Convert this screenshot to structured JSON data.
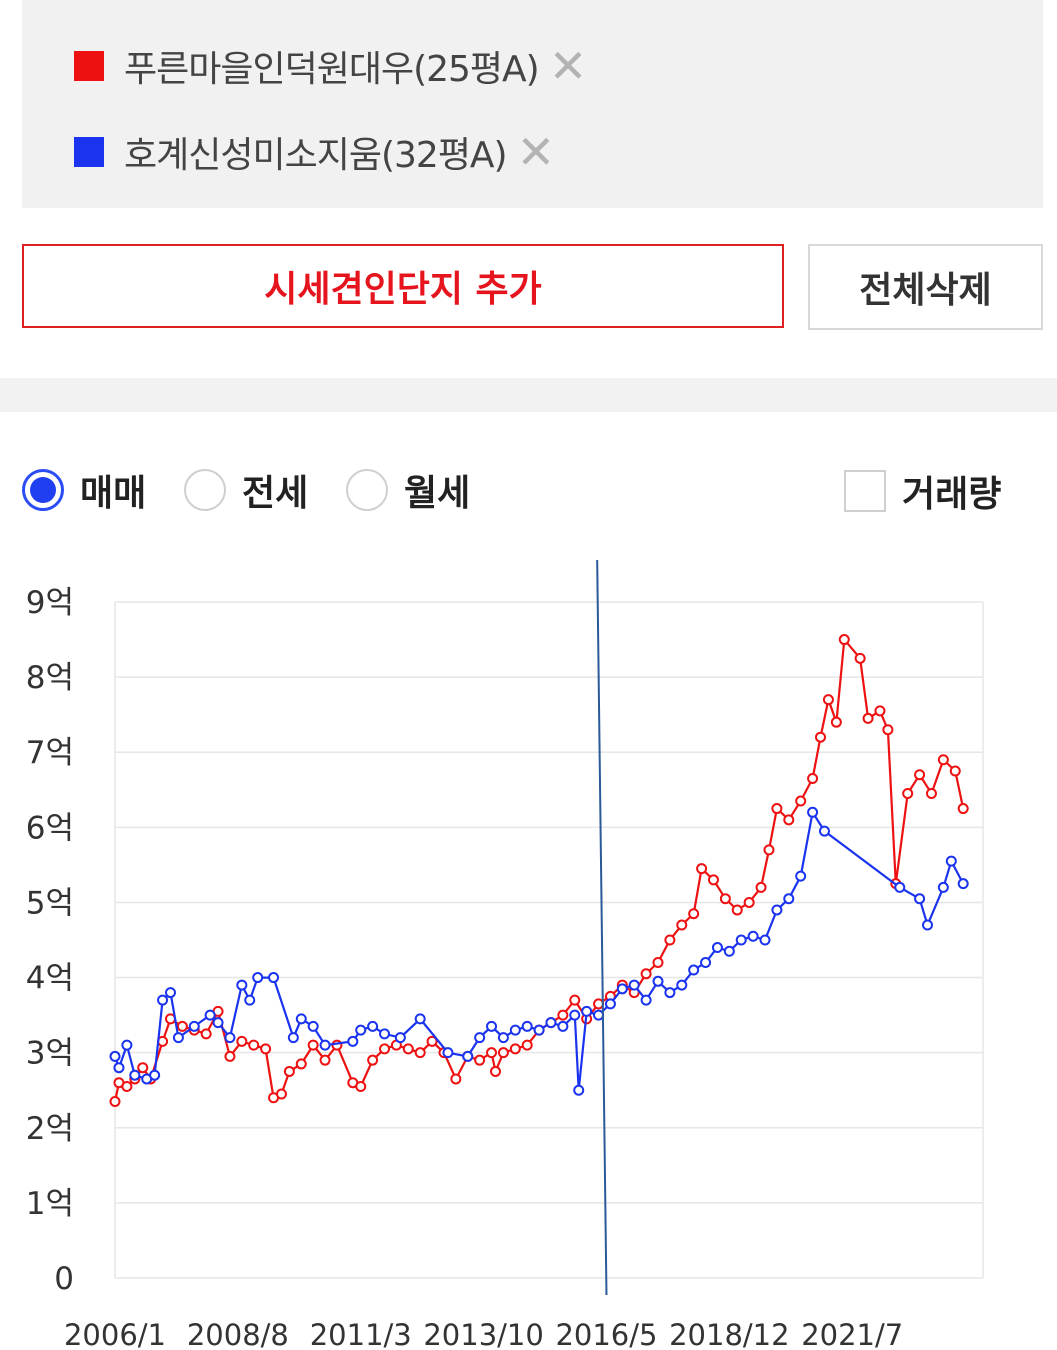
{
  "legend": {
    "items": [
      {
        "label": "푸른마을인덕원대우(25평A)",
        "color": "#ee1111",
        "remove": "✕"
      },
      {
        "label": "호계신성미소지움(32평A)",
        "color": "#1a33ee",
        "remove": "✕"
      }
    ]
  },
  "buttons": {
    "add_label": "시세견인단지 추가",
    "delete_all_label": "전체삭제"
  },
  "tabs": [
    {
      "label": "매매",
      "selected": true
    },
    {
      "label": "전세",
      "selected": false
    },
    {
      "label": "월세",
      "selected": false
    }
  ],
  "volume_toggle": {
    "label": "거래량",
    "checked": false
  },
  "chart_data": {
    "type": "line",
    "title": "",
    "xlabel": "",
    "ylabel": "",
    "y_tick_labels": [
      "0",
      "1억",
      "2억",
      "3억",
      "4억",
      "5억",
      "6억",
      "7억",
      "8억",
      "9억"
    ],
    "ylim": [
      0,
      9
    ],
    "y_unit": "억",
    "x_tick_labels": [
      "2006/1",
      "2008/8",
      "2011/3",
      "2013/10",
      "2016/5",
      "2018/12",
      "2021/7"
    ],
    "xlim": [
      "2006-01",
      "2024-04"
    ],
    "grid": true,
    "legend": "top",
    "crosshair_date": "2016-05",
    "series": [
      {
        "name": "푸른마을인덕원대우(25평A)",
        "color": "#ee1111",
        "points": [
          [
            "2006-01",
            2.35
          ],
          [
            "2006-02",
            2.6
          ],
          [
            "2006-04",
            2.55
          ],
          [
            "2006-06",
            2.65
          ],
          [
            "2006-08",
            2.8
          ],
          [
            "2006-10",
            2.65
          ],
          [
            "2007-01",
            3.15
          ],
          [
            "2007-03",
            3.45
          ],
          [
            "2007-06",
            3.35
          ],
          [
            "2007-09",
            3.3
          ],
          [
            "2007-12",
            3.25
          ],
          [
            "2008-03",
            3.55
          ],
          [
            "2008-06",
            2.95
          ],
          [
            "2008-09",
            3.15
          ],
          [
            "2008-12",
            3.1
          ],
          [
            "2009-03",
            3.05
          ],
          [
            "2009-05",
            2.4
          ],
          [
            "2009-07",
            2.45
          ],
          [
            "2009-09",
            2.75
          ],
          [
            "2009-12",
            2.85
          ],
          [
            "2010-03",
            3.1
          ],
          [
            "2010-06",
            2.9
          ],
          [
            "2010-09",
            3.1
          ],
          [
            "2011-01",
            2.6
          ],
          [
            "2011-03",
            2.55
          ],
          [
            "2011-06",
            2.9
          ],
          [
            "2011-09",
            3.05
          ],
          [
            "2011-12",
            3.1
          ],
          [
            "2012-03",
            3.05
          ],
          [
            "2012-06",
            3.0
          ],
          [
            "2012-09",
            3.15
          ],
          [
            "2012-12",
            3.0
          ],
          [
            "2013-03",
            2.65
          ],
          [
            "2013-06",
            2.95
          ],
          [
            "2013-09",
            2.9
          ],
          [
            "2013-12",
            3.0
          ],
          [
            "2014-01",
            2.75
          ],
          [
            "2014-03",
            3.0
          ],
          [
            "2014-06",
            3.05
          ],
          [
            "2014-09",
            3.1
          ],
          [
            "2014-12",
            3.3
          ],
          [
            "2015-03",
            3.4
          ],
          [
            "2015-06",
            3.5
          ],
          [
            "2015-09",
            3.7
          ],
          [
            "2015-12",
            3.45
          ],
          [
            "2016-03",
            3.65
          ],
          [
            "2016-06",
            3.75
          ],
          [
            "2016-09",
            3.9
          ],
          [
            "2016-12",
            3.8
          ],
          [
            "2017-03",
            4.05
          ],
          [
            "2017-06",
            4.2
          ],
          [
            "2017-09",
            4.5
          ],
          [
            "2017-12",
            4.7
          ],
          [
            "2018-03",
            4.85
          ],
          [
            "2018-05",
            5.45
          ],
          [
            "2018-08",
            5.3
          ],
          [
            "2018-11",
            5.05
          ],
          [
            "2019-02",
            4.9
          ],
          [
            "2019-05",
            5.0
          ],
          [
            "2019-08",
            5.2
          ],
          [
            "2019-10",
            5.7
          ],
          [
            "2019-12",
            6.25
          ],
          [
            "2020-03",
            6.1
          ],
          [
            "2020-06",
            6.35
          ],
          [
            "2020-09",
            6.65
          ],
          [
            "2020-11",
            7.2
          ],
          [
            "2021-01",
            7.7
          ],
          [
            "2021-03",
            7.4
          ],
          [
            "2021-05",
            8.5
          ],
          [
            "2021-09",
            8.25
          ],
          [
            "2021-11",
            7.45
          ],
          [
            "2022-02",
            7.55
          ],
          [
            "2022-04",
            7.3
          ],
          [
            "2022-06",
            5.25
          ],
          [
            "2022-09",
            6.45
          ],
          [
            "2022-12",
            6.7
          ],
          [
            "2023-03",
            6.45
          ],
          [
            "2023-06",
            6.9
          ],
          [
            "2023-09",
            6.75
          ],
          [
            "2023-11",
            6.25
          ]
        ]
      },
      {
        "name": "호계신성미소지움(32평A)",
        "color": "#1a33ee",
        "points": [
          [
            "2006-01",
            2.95
          ],
          [
            "2006-02",
            2.8
          ],
          [
            "2006-04",
            3.1
          ],
          [
            "2006-06",
            2.7
          ],
          [
            "2006-09",
            2.65
          ],
          [
            "2006-11",
            2.7
          ],
          [
            "2007-01",
            3.7
          ],
          [
            "2007-03",
            3.8
          ],
          [
            "2007-05",
            3.2
          ],
          [
            "2007-09",
            3.35
          ],
          [
            "2008-01",
            3.5
          ],
          [
            "2008-03",
            3.4
          ],
          [
            "2008-06",
            3.2
          ],
          [
            "2008-09",
            3.9
          ],
          [
            "2008-11",
            3.7
          ],
          [
            "2009-01",
            4.0
          ],
          [
            "2009-05",
            4.0
          ],
          [
            "2009-10",
            3.2
          ],
          [
            "2009-12",
            3.45
          ],
          [
            "2010-03",
            3.35
          ],
          [
            "2010-06",
            3.1
          ],
          [
            "2011-01",
            3.15
          ],
          [
            "2011-03",
            3.3
          ],
          [
            "2011-06",
            3.35
          ],
          [
            "2011-09",
            3.25
          ],
          [
            "2012-01",
            3.2
          ],
          [
            "2012-06",
            3.45
          ],
          [
            "2013-01",
            3.0
          ],
          [
            "2013-06",
            2.95
          ],
          [
            "2013-09",
            3.2
          ],
          [
            "2013-12",
            3.35
          ],
          [
            "2014-03",
            3.2
          ],
          [
            "2014-06",
            3.3
          ],
          [
            "2014-09",
            3.35
          ],
          [
            "2014-12",
            3.3
          ],
          [
            "2015-03",
            3.4
          ],
          [
            "2015-06",
            3.35
          ],
          [
            "2015-09",
            3.5
          ],
          [
            "2015-10",
            2.5
          ],
          [
            "2015-12",
            3.55
          ],
          [
            "2016-03",
            3.5
          ],
          [
            "2016-06",
            3.65
          ],
          [
            "2016-09",
            3.85
          ],
          [
            "2016-12",
            3.9
          ],
          [
            "2017-03",
            3.7
          ],
          [
            "2017-06",
            3.95
          ],
          [
            "2017-09",
            3.8
          ],
          [
            "2017-12",
            3.9
          ],
          [
            "2018-03",
            4.1
          ],
          [
            "2018-06",
            4.2
          ],
          [
            "2018-09",
            4.4
          ],
          [
            "2018-12",
            4.35
          ],
          [
            "2019-03",
            4.5
          ],
          [
            "2019-06",
            4.55
          ],
          [
            "2019-09",
            4.5
          ],
          [
            "2019-12",
            4.9
          ],
          [
            "2020-03",
            5.05
          ],
          [
            "2020-06",
            5.35
          ],
          [
            "2020-09",
            6.2
          ],
          [
            "2020-12",
            5.95
          ],
          [
            "2022-07",
            5.2
          ],
          [
            "2022-12",
            5.05
          ],
          [
            "2023-02",
            4.7
          ],
          [
            "2023-06",
            5.2
          ],
          [
            "2023-08",
            5.55
          ],
          [
            "2023-11",
            5.25
          ]
        ]
      }
    ]
  }
}
